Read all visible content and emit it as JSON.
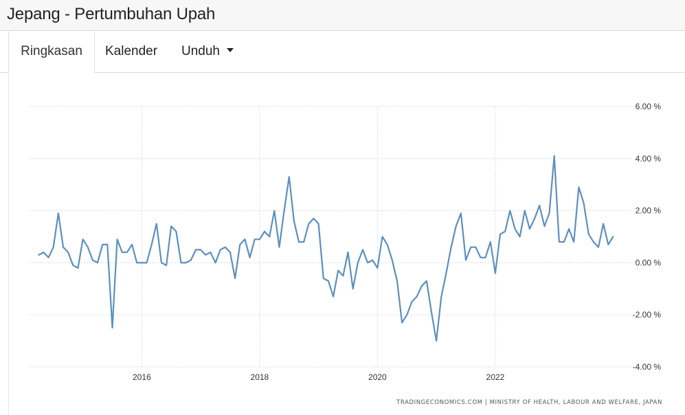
{
  "header": {
    "title": "Jepang - Pertumbuhan Upah"
  },
  "tabs": [
    {
      "label": "Ringkasan",
      "active": true
    },
    {
      "label": "Kalender",
      "active": false
    },
    {
      "label": "Unduh",
      "active": false,
      "has_dropdown": true
    }
  ],
  "colors": {
    "line": "#5b8fc0",
    "grid": "#d9d9d9",
    "tab_border": "#dddddd"
  },
  "chart_data": {
    "type": "line",
    "title": "",
    "xlabel": "",
    "ylabel": "",
    "x_start": "2014-04",
    "x_step": "month",
    "xlim": [
      "2014-02",
      "2024-05"
    ],
    "ylim": [
      -4,
      6
    ],
    "y_ticks": [
      6,
      4,
      2,
      0,
      -2,
      -4
    ],
    "y_tick_labels": [
      "6.00 %",
      "4.00 %",
      "2.00 %",
      "0.00 %",
      "-2.00 %",
      "-4.00 %"
    ],
    "x_ticks": [
      "2016",
      "2018",
      "2020",
      "2022"
    ],
    "x_tick_labels": [
      "2016",
      "2018",
      "2020",
      "2022"
    ],
    "y_axis_position": "right",
    "grid": true,
    "legend": "none",
    "source": "TRADINGECONOMICS.COM | MINISTRY OF HEALTH, LABOUR AND WELFARE, JAPAN",
    "series": [
      {
        "values": [
          0.3,
          0.4,
          0.2,
          0.6,
          1.9,
          0.6,
          0.4,
          -0.1,
          -0.2,
          0.9,
          0.6,
          0.1,
          0.0,
          0.7,
          0.7,
          -2.5,
          0.9,
          0.4,
          0.4,
          0.7,
          0.0,
          0.0,
          0.0,
          0.7,
          1.5,
          0.0,
          -0.1,
          1.4,
          1.2,
          0.0,
          0.0,
          0.1,
          0.5,
          0.5,
          0.3,
          0.4,
          0.0,
          0.5,
          0.6,
          0.4,
          -0.6,
          0.7,
          0.9,
          0.2,
          0.9,
          0.9,
          1.2,
          1.0,
          2.0,
          0.6,
          2.0,
          3.3,
          1.6,
          0.8,
          0.8,
          1.5,
          1.7,
          1.5,
          -0.6,
          -0.7,
          -1.3,
          -0.3,
          -0.5,
          0.4,
          -1.0,
          0.0,
          0.5,
          0.0,
          0.1,
          -0.2,
          1.0,
          0.7,
          0.1,
          -0.7,
          -2.3,
          -2.0,
          -1.5,
          -1.3,
          -0.9,
          -0.7,
          -1.9,
          -3.0,
          -1.3,
          -0.4,
          0.6,
          1.4,
          1.9,
          0.1,
          0.6,
          0.6,
          0.2,
          0.2,
          0.8,
          -0.4,
          1.1,
          1.2,
          2.0,
          1.3,
          1.0,
          2.0,
          1.3,
          1.7,
          2.2,
          1.4,
          1.9,
          4.1,
          0.8,
          0.8,
          1.3,
          0.8,
          2.9,
          2.3,
          1.1,
          0.8,
          0.6,
          1.5,
          0.7,
          1.0
        ]
      }
    ]
  }
}
